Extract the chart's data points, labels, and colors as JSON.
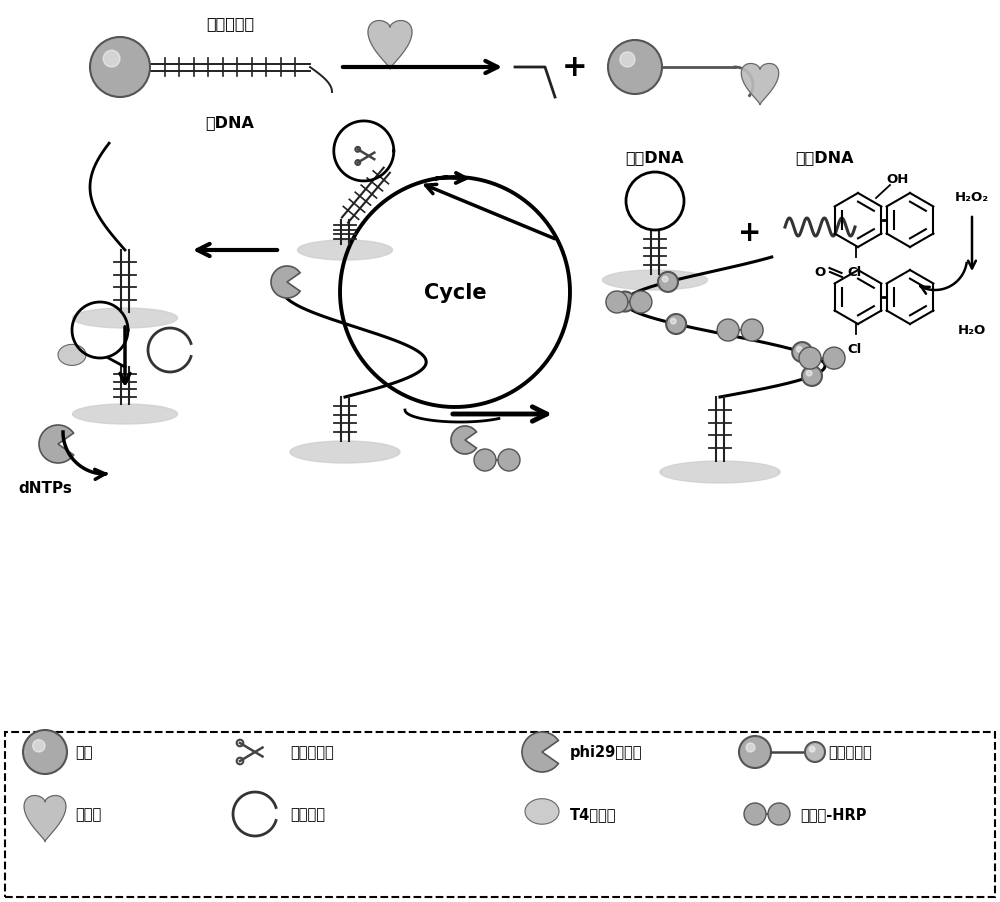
{
  "bg_color": "#ffffff",
  "labels": {
    "lysozyme_aptamer": "溶菌酶适体",
    "main_dna": "主DNA",
    "hairpin_dna": "发卡DNA",
    "helper_dna": "助理DNA",
    "cycle": "Cycle",
    "dntps": "dNTPs",
    "h2o2": "H₂O₂",
    "h2o": "H₂O",
    "oh": "OH",
    "o": "O",
    "cl": "Cl"
  },
  "legend": {
    "row1": [
      "磁珠",
      "核酸内切酶",
      "phi29聚合酶",
      "生物素探针"
    ],
    "row2": [
      "溶菌酶",
      "锁扣探针",
      "T4连接酶",
      "亲和素-HRP"
    ]
  }
}
